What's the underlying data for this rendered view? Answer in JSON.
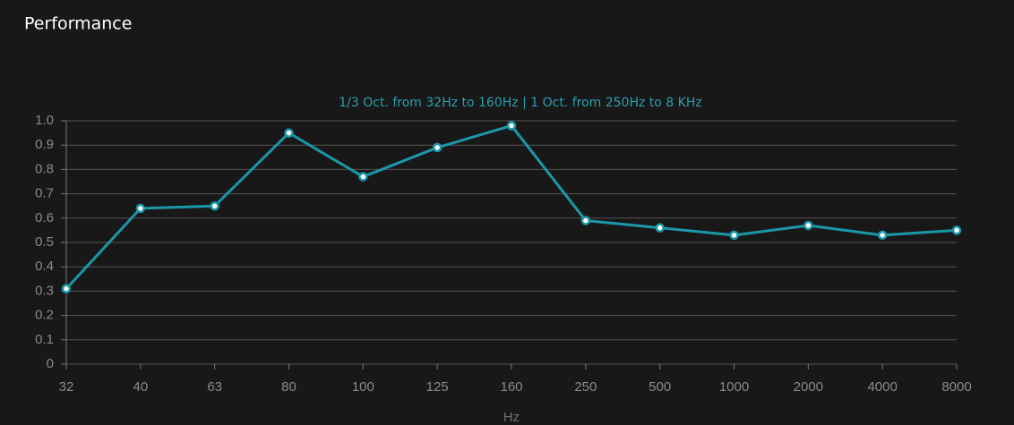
{
  "header": {
    "title": "Performance"
  },
  "chart_data": {
    "type": "line",
    "subtitle": "1/3 Oct. from 32Hz to 160Hz | 1 Oct. from 250Hz to 8 KHz",
    "x_label": "Hz",
    "categories": [
      "32",
      "40",
      "63",
      "80",
      "100",
      "125",
      "160",
      "250",
      "500",
      "1000",
      "2000",
      "4000",
      "8000"
    ],
    "values": [
      0.31,
      0.64,
      0.65,
      0.95,
      0.77,
      0.89,
      0.98,
      0.59,
      0.56,
      0.53,
      0.57,
      0.53,
      0.55
    ],
    "color": "#1a97a8",
    "ylim": [
      0,
      1
    ],
    "yticks": [
      0,
      0.1,
      0.2,
      0.3,
      0.4,
      0.5,
      0.6,
      0.7,
      0.8,
      0.9,
      {
        "value": 1,
        "label": "1.0"
      }
    ],
    "grid": true
  }
}
